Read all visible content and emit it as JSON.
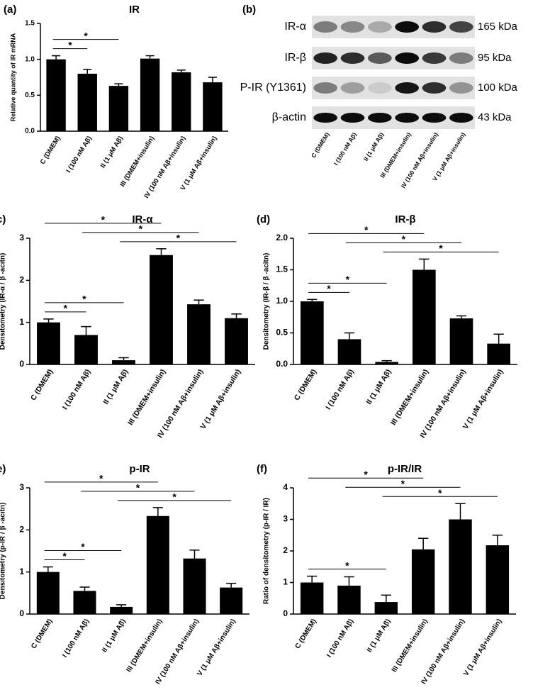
{
  "chart_data": [
    {
      "type": "bar",
      "panel": "(a)",
      "title": "IR",
      "ylabel": "Relative quantity of IR mRNA",
      "categories": [
        "C (DMEM)",
        "I (100 nM Aβ)",
        "II (1 μM Aβ)",
        "III (DMEM+insulin)",
        "IV (100 nM Aβ+insulin)",
        "V (1 μM Aβ+insulin)"
      ],
      "values": [
        1.0,
        0.8,
        0.63,
        1.01,
        0.82,
        0.68
      ],
      "errors": [
        0.05,
        0.06,
        0.03,
        0.04,
        0.03,
        0.07
      ],
      "color": "#000000",
      "ylim": [
        0,
        1.5
      ],
      "yticks": [
        {
          "value": 0,
          "label": "0.0"
        },
        0.5,
        {
          "value": 1,
          "label": "1.0"
        },
        1.5
      ],
      "comparisons": [
        {
          "pair": [
            0,
            1
          ],
          "label": "*"
        },
        {
          "pair": [
            0,
            2
          ],
          "label": "*"
        }
      ]
    },
    {
      "type": "bar",
      "panel": "(c)",
      "title": "IR-α",
      "ylabel": "Densitometry (IR-α / β -acitn)",
      "categories": [
        "C (DMEM)",
        "I (100 nM Aβ)",
        "II (1 μM Aβ)",
        "III (DMEM+insulin)",
        "IV (100 nM Aβ+insulin)",
        "V (1 μM Aβ+insulin)"
      ],
      "values": [
        1.0,
        0.7,
        0.1,
        2.6,
        1.43,
        1.1
      ],
      "errors": [
        0.08,
        0.2,
        0.06,
        0.15,
        0.1,
        0.1
      ],
      "color": "#000000",
      "ylim": [
        0,
        3
      ],
      "yticks": [
        0,
        1,
        2,
        3
      ],
      "comparisons": [
        {
          "pair": [
            0,
            1
          ],
          "label": "*"
        },
        {
          "pair": [
            0,
            2
          ],
          "label": "*"
        },
        {
          "pair": [
            2,
            5
          ],
          "label": "*"
        },
        {
          "pair": [
            1,
            4
          ],
          "label": "*"
        },
        {
          "pair": [
            0,
            3
          ],
          "label": "*"
        }
      ]
    },
    {
      "type": "bar",
      "panel": "(d)",
      "title": "IR-β",
      "ylabel": "Densitometry (IR-β / β -acitn)",
      "categories": [
        "C (DMEM)",
        "I (100 nM Aβ)",
        "II (1 μM Aβ)",
        "III (DMEM+insulin)",
        "IV (100 nM Aβ+insulin)",
        "V (1 μM Aβ+insulin)"
      ],
      "values": [
        1.0,
        0.4,
        0.04,
        1.5,
        0.73,
        0.33
      ],
      "errors": [
        0.03,
        0.1,
        0.02,
        0.17,
        0.04,
        0.15
      ],
      "color": "#000000",
      "ylim": [
        0,
        2
      ],
      "yticks": [
        {
          "value": 0,
          "label": "0.0"
        },
        0.5,
        {
          "value": 1,
          "label": "1.0"
        },
        1.5,
        {
          "value": 2,
          "label": "2.0"
        }
      ],
      "comparisons": [
        {
          "pair": [
            0,
            1
          ],
          "label": "*"
        },
        {
          "pair": [
            0,
            2
          ],
          "label": "*"
        },
        {
          "pair": [
            2,
            5
          ],
          "label": "*"
        },
        {
          "pair": [
            1,
            4
          ],
          "label": "*"
        },
        {
          "pair": [
            0,
            3
          ],
          "label": "*"
        }
      ]
    },
    {
      "type": "bar",
      "panel": "(e)",
      "title": "p-IR",
      "ylabel": "Densitometry (p-IR / β -acitn)",
      "categories": [
        "C (DMEM)",
        "I (100 nM Aβ)",
        "II (1 μM Aβ)",
        "III (DMEM+insulin)",
        "IV (100 nM Aβ+insulin)",
        "V (1 μM Aβ+insulin)"
      ],
      "values": [
        1.0,
        0.55,
        0.17,
        2.33,
        1.32,
        0.63
      ],
      "errors": [
        0.12,
        0.09,
        0.05,
        0.2,
        0.2,
        0.1
      ],
      "color": "#000000",
      "ylim": [
        0,
        3
      ],
      "yticks": [
        0,
        1,
        2,
        3
      ],
      "comparisons": [
        {
          "pair": [
            0,
            1
          ],
          "label": "*"
        },
        {
          "pair": [
            0,
            2
          ],
          "label": "*"
        },
        {
          "pair": [
            2,
            5
          ],
          "label": "*"
        },
        {
          "pair": [
            1,
            4
          ],
          "label": "*"
        },
        {
          "pair": [
            0,
            3
          ],
          "label": "*"
        }
      ]
    },
    {
      "type": "bar",
      "panel": "(f)",
      "title": "p-IR/IR",
      "ylabel": "Ratio of densitometry (p-IR / IR)",
      "categories": [
        "C (DMEM)",
        "I (100 nM Aβ)",
        "II (1 μM Aβ)",
        "III (DMEM+insulin)",
        "IV (100 nM Aβ+insulin)",
        "V (1 μM Aβ+insulin)"
      ],
      "values": [
        1.0,
        0.9,
        0.38,
        2.05,
        3.0,
        2.18
      ],
      "errors": [
        0.2,
        0.28,
        0.22,
        0.35,
        0.5,
        0.32
      ],
      "color": "#000000",
      "ylim": [
        0,
        4
      ],
      "yticks": [
        0,
        1,
        2,
        3,
        4
      ],
      "comparisons": [
        {
          "pair": [
            0,
            2
          ],
          "label": "*"
        },
        {
          "pair": [
            2,
            5
          ],
          "label": "*"
        },
        {
          "pair": [
            1,
            4
          ],
          "label": "*"
        },
        {
          "pair": [
            0,
            3
          ],
          "label": "*"
        }
      ]
    }
  ],
  "blot": {
    "panel": "(b)",
    "rows": [
      {
        "label": "IR-α",
        "size": "165 kDa"
      },
      {
        "label": "IR-β",
        "size": "95 kDa"
      },
      {
        "label": "P-IR (Y1361)",
        "size": "100 kDa"
      },
      {
        "label": "β-actin",
        "size": "43 kDa"
      }
    ],
    "lanes": [
      "C (DMEM)",
      "I (100 nM Aβ)",
      "II (1 μM Aβ)",
      "III (DMEM+insulin)",
      "IV (100 nM Aβ+insulin)",
      "V (1 μM Aβ+insulin)"
    ]
  }
}
